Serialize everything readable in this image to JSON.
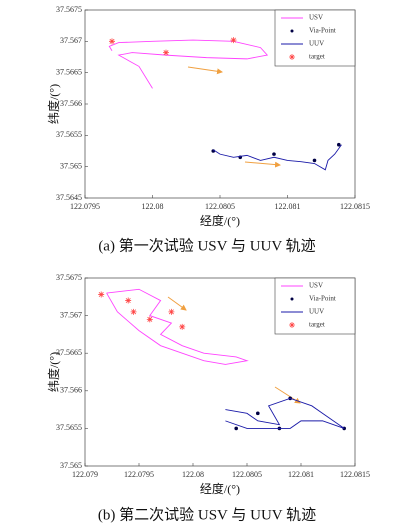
{
  "chart_data": [
    {
      "type": "line",
      "xlabel": "经度/(°)",
      "ylabel": "纬度/(°)",
      "caption": "(a) 第一次试验 USV 与 UUV 轨迹",
      "xlim": [
        122.0795,
        122.0815
      ],
      "xticks": [
        122.0795,
        122.08,
        122.0805,
        122.081,
        122.0815
      ],
      "ylim": [
        37.5645,
        37.5675
      ],
      "yticks": [
        37.5645,
        37.565,
        37.5655,
        37.566,
        37.5665,
        37.567,
        37.5675
      ],
      "legend": "upper right",
      "series": [
        {
          "name": "USV",
          "color": "#ff44ff",
          "mode": "line",
          "x": [
            122.0797,
            122.07968,
            122.07975,
            122.08,
            122.0803,
            122.0806,
            122.0808,
            122.08085,
            122.0807,
            122.0804,
            122.0801,
            122.07985,
            122.07975,
            122.0799,
            122.08
          ],
          "values": [
            37.56685,
            37.56692,
            37.56698,
            37.567,
            37.56702,
            37.567,
            37.5669,
            37.56678,
            37.56672,
            37.56674,
            37.56678,
            37.56682,
            37.56678,
            37.5666,
            37.56625
          ]
        },
        {
          "name": "Via-Point",
          "color": "#000044",
          "mode": "dot",
          "x": [
            122.08045,
            122.08065,
            122.0809,
            122.0812,
            122.08138
          ],
          "values": [
            37.56525,
            37.56515,
            37.5652,
            37.5651,
            37.56535
          ]
        },
        {
          "name": "UUV",
          "color": "#1a1aa8",
          "mode": "line",
          "x": [
            122.08045,
            122.0805,
            122.0806,
            122.0807,
            122.0808,
            122.0809,
            122.081,
            122.0811,
            122.0812,
            122.08128,
            122.0813,
            122.08135,
            122.0814
          ],
          "values": [
            37.56527,
            37.5652,
            37.56515,
            37.56518,
            37.5651,
            37.56515,
            37.5651,
            37.56508,
            37.56505,
            37.56495,
            37.5651,
            37.5652,
            37.56535
          ]
        },
        {
          "name": "target",
          "color": "#ff4444",
          "mode": "asterisk",
          "x": [
            122.0797,
            122.0801,
            122.0806
          ],
          "values": [
            37.567,
            37.56682,
            37.56702
          ]
        }
      ]
    },
    {
      "type": "line",
      "xlabel": "经度/(°)",
      "ylabel": "纬度/(°)",
      "caption": "(b) 第二次试验 USV 与 UUV 轨迹",
      "xlim": [
        122.079,
        122.0815
      ],
      "xticks": [
        122.079,
        122.0795,
        122.08,
        122.0805,
        122.081,
        122.0815
      ],
      "ylim": [
        37.565,
        37.5675
      ],
      "yticks": [
        37.565,
        37.5655,
        37.566,
        37.5665,
        37.567,
        37.5675
      ],
      "legend": "upper right",
      "series": [
        {
          "name": "USV",
          "color": "#ff44ff",
          "mode": "line",
          "x": [
            122.0792,
            122.0795,
            122.0797,
            122.0796,
            122.0798,
            122.0797,
            122.0799,
            122.0801,
            122.0804,
            122.0805,
            122.0803,
            122.0801,
            122.0799,
            122.0797,
            122.0795,
            122.0793,
            122.0792
          ],
          "values": [
            37.5673,
            37.56735,
            37.5672,
            37.567,
            37.5669,
            37.56675,
            37.5666,
            37.5665,
            37.56645,
            37.5664,
            37.56635,
            37.5664,
            37.5665,
            37.5666,
            37.5668,
            37.56705,
            37.5673
          ]
        },
        {
          "name": "Via-Point",
          "color": "#000044",
          "mode": "dot",
          "x": [
            122.0804,
            122.0806,
            122.0808,
            122.0814,
            122.0809
          ],
          "values": [
            37.5655,
            37.5657,
            37.5655,
            37.5655,
            37.5659
          ]
        },
        {
          "name": "UUV",
          "color": "#1a1aa8",
          "mode": "line",
          "x": [
            122.0803,
            122.0805,
            122.0806,
            122.0808,
            122.0807,
            122.0809,
            122.0811,
            122.0812,
            122.0813,
            122.0814,
            122.0812,
            122.081,
            122.0809,
            122.0807,
            122.0805,
            122.0803
          ],
          "values": [
            37.56575,
            37.5657,
            37.5656,
            37.56555,
            37.5658,
            37.5659,
            37.5658,
            37.5657,
            37.5656,
            37.5655,
            37.5656,
            37.5656,
            37.5655,
            37.5655,
            37.5655,
            37.5656
          ]
        },
        {
          "name": "target",
          "color": "#ff4444",
          "mode": "asterisk",
          "x": [
            122.07915,
            122.0794,
            122.07945,
            122.0796,
            122.0798,
            122.0799
          ],
          "values": [
            37.56728,
            37.5672,
            37.56705,
            37.56695,
            37.56705,
            37.56685
          ]
        }
      ]
    }
  ]
}
